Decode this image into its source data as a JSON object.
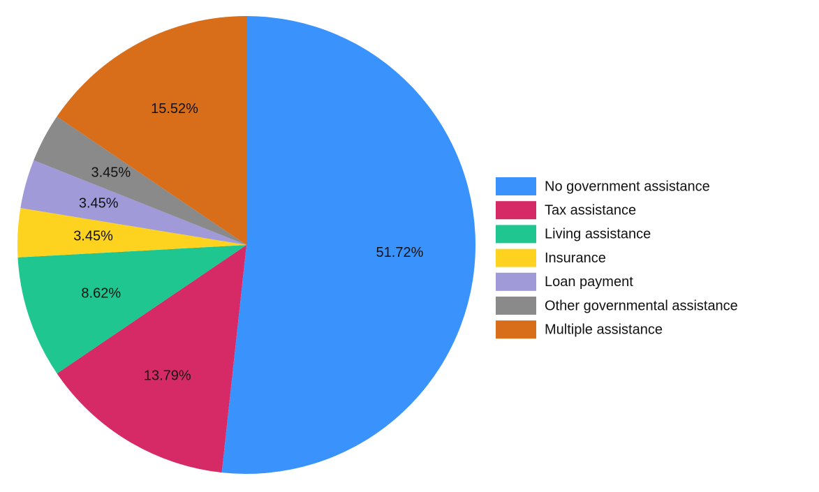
{
  "chart_data": {
    "type": "pie",
    "categories": [
      "No government assistance",
      "Tax assistance",
      "Living assistance",
      "Insurance",
      "Loan payment",
      "Other governmental assistance",
      "Multiple assistance"
    ],
    "values": [
      51.72,
      13.79,
      8.62,
      3.45,
      3.45,
      3.45,
      15.52
    ],
    "value_labels": [
      "51.72%",
      "13.79%",
      "8.62%",
      "3.45%",
      "3.45%",
      "3.45%",
      "15.52%"
    ],
    "colors": [
      "#3a93fd",
      "#d62a67",
      "#1fc68f",
      "#fdd31f",
      "#a09ad8",
      "#8a8a8a",
      "#d86e1a"
    ],
    "legend": "right"
  }
}
